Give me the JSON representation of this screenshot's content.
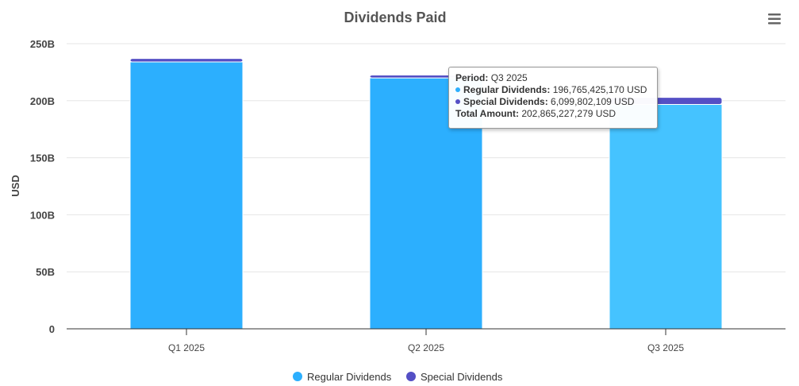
{
  "chart_data": {
    "type": "bar",
    "stacked": true,
    "title": "Dividends Paid",
    "ylabel": "USD",
    "xlabel": "",
    "categories": [
      "Q1 2025",
      "Q2 2025",
      "Q3 2025"
    ],
    "series": [
      {
        "name": "Regular Dividends",
        "color": "#2caffe",
        "values": [
          234000000000,
          220000000000,
          196765425170
        ]
      },
      {
        "name": "Special Dividends",
        "color": "#544fc5",
        "values": [
          3000000000,
          2500000000,
          6099802109
        ]
      }
    ],
    "ylim": [
      0,
      250000000000
    ],
    "yticks": [
      "0",
      "50B",
      "100B",
      "150B",
      "200B",
      "250B"
    ],
    "yticks_values": [
      0,
      50000000000,
      100000000000,
      150000000000,
      200000000000,
      250000000000
    ],
    "grid": true,
    "legend_position": "bottom",
    "highlighted_category": "Q3 2025",
    "highlight_color": "#45c3ff"
  },
  "tooltip": {
    "period_label": "Period:",
    "period_value": "Q3 2025",
    "regular_label": "Regular Dividends:",
    "regular_value": "196,765,425,170 USD",
    "special_label": "Special Dividends:",
    "special_value": "6,099,802,109 USD",
    "total_label": "Total Amount:",
    "total_value": "202,865,227,279 USD"
  },
  "menu": {
    "icon": "hamburger-menu-icon"
  }
}
